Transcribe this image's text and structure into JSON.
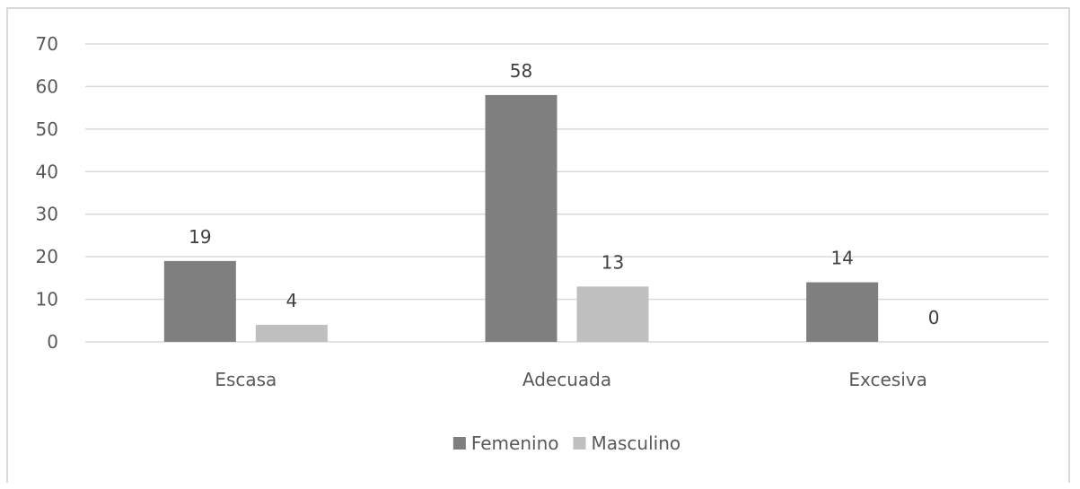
{
  "chart_data": {
    "type": "bar",
    "categories": [
      "Escasa",
      "Adecuada",
      "Excesiva"
    ],
    "series": [
      {
        "name": "Femenino",
        "values": [
          19,
          58,
          14
        ],
        "color": "#7f7f7f"
      },
      {
        "name": "Masculino",
        "values": [
          4,
          13,
          0
        ],
        "color": "#bfbfbf"
      }
    ],
    "title": "",
    "xlabel": "",
    "ylabel": "",
    "ylim": [
      0,
      70
    ],
    "yticks": [
      0,
      10,
      20,
      30,
      40,
      50,
      60,
      70
    ],
    "grid": true,
    "legend_position": "bottom",
    "data_labels": true,
    "gridline_color": "#d9d9d9"
  }
}
